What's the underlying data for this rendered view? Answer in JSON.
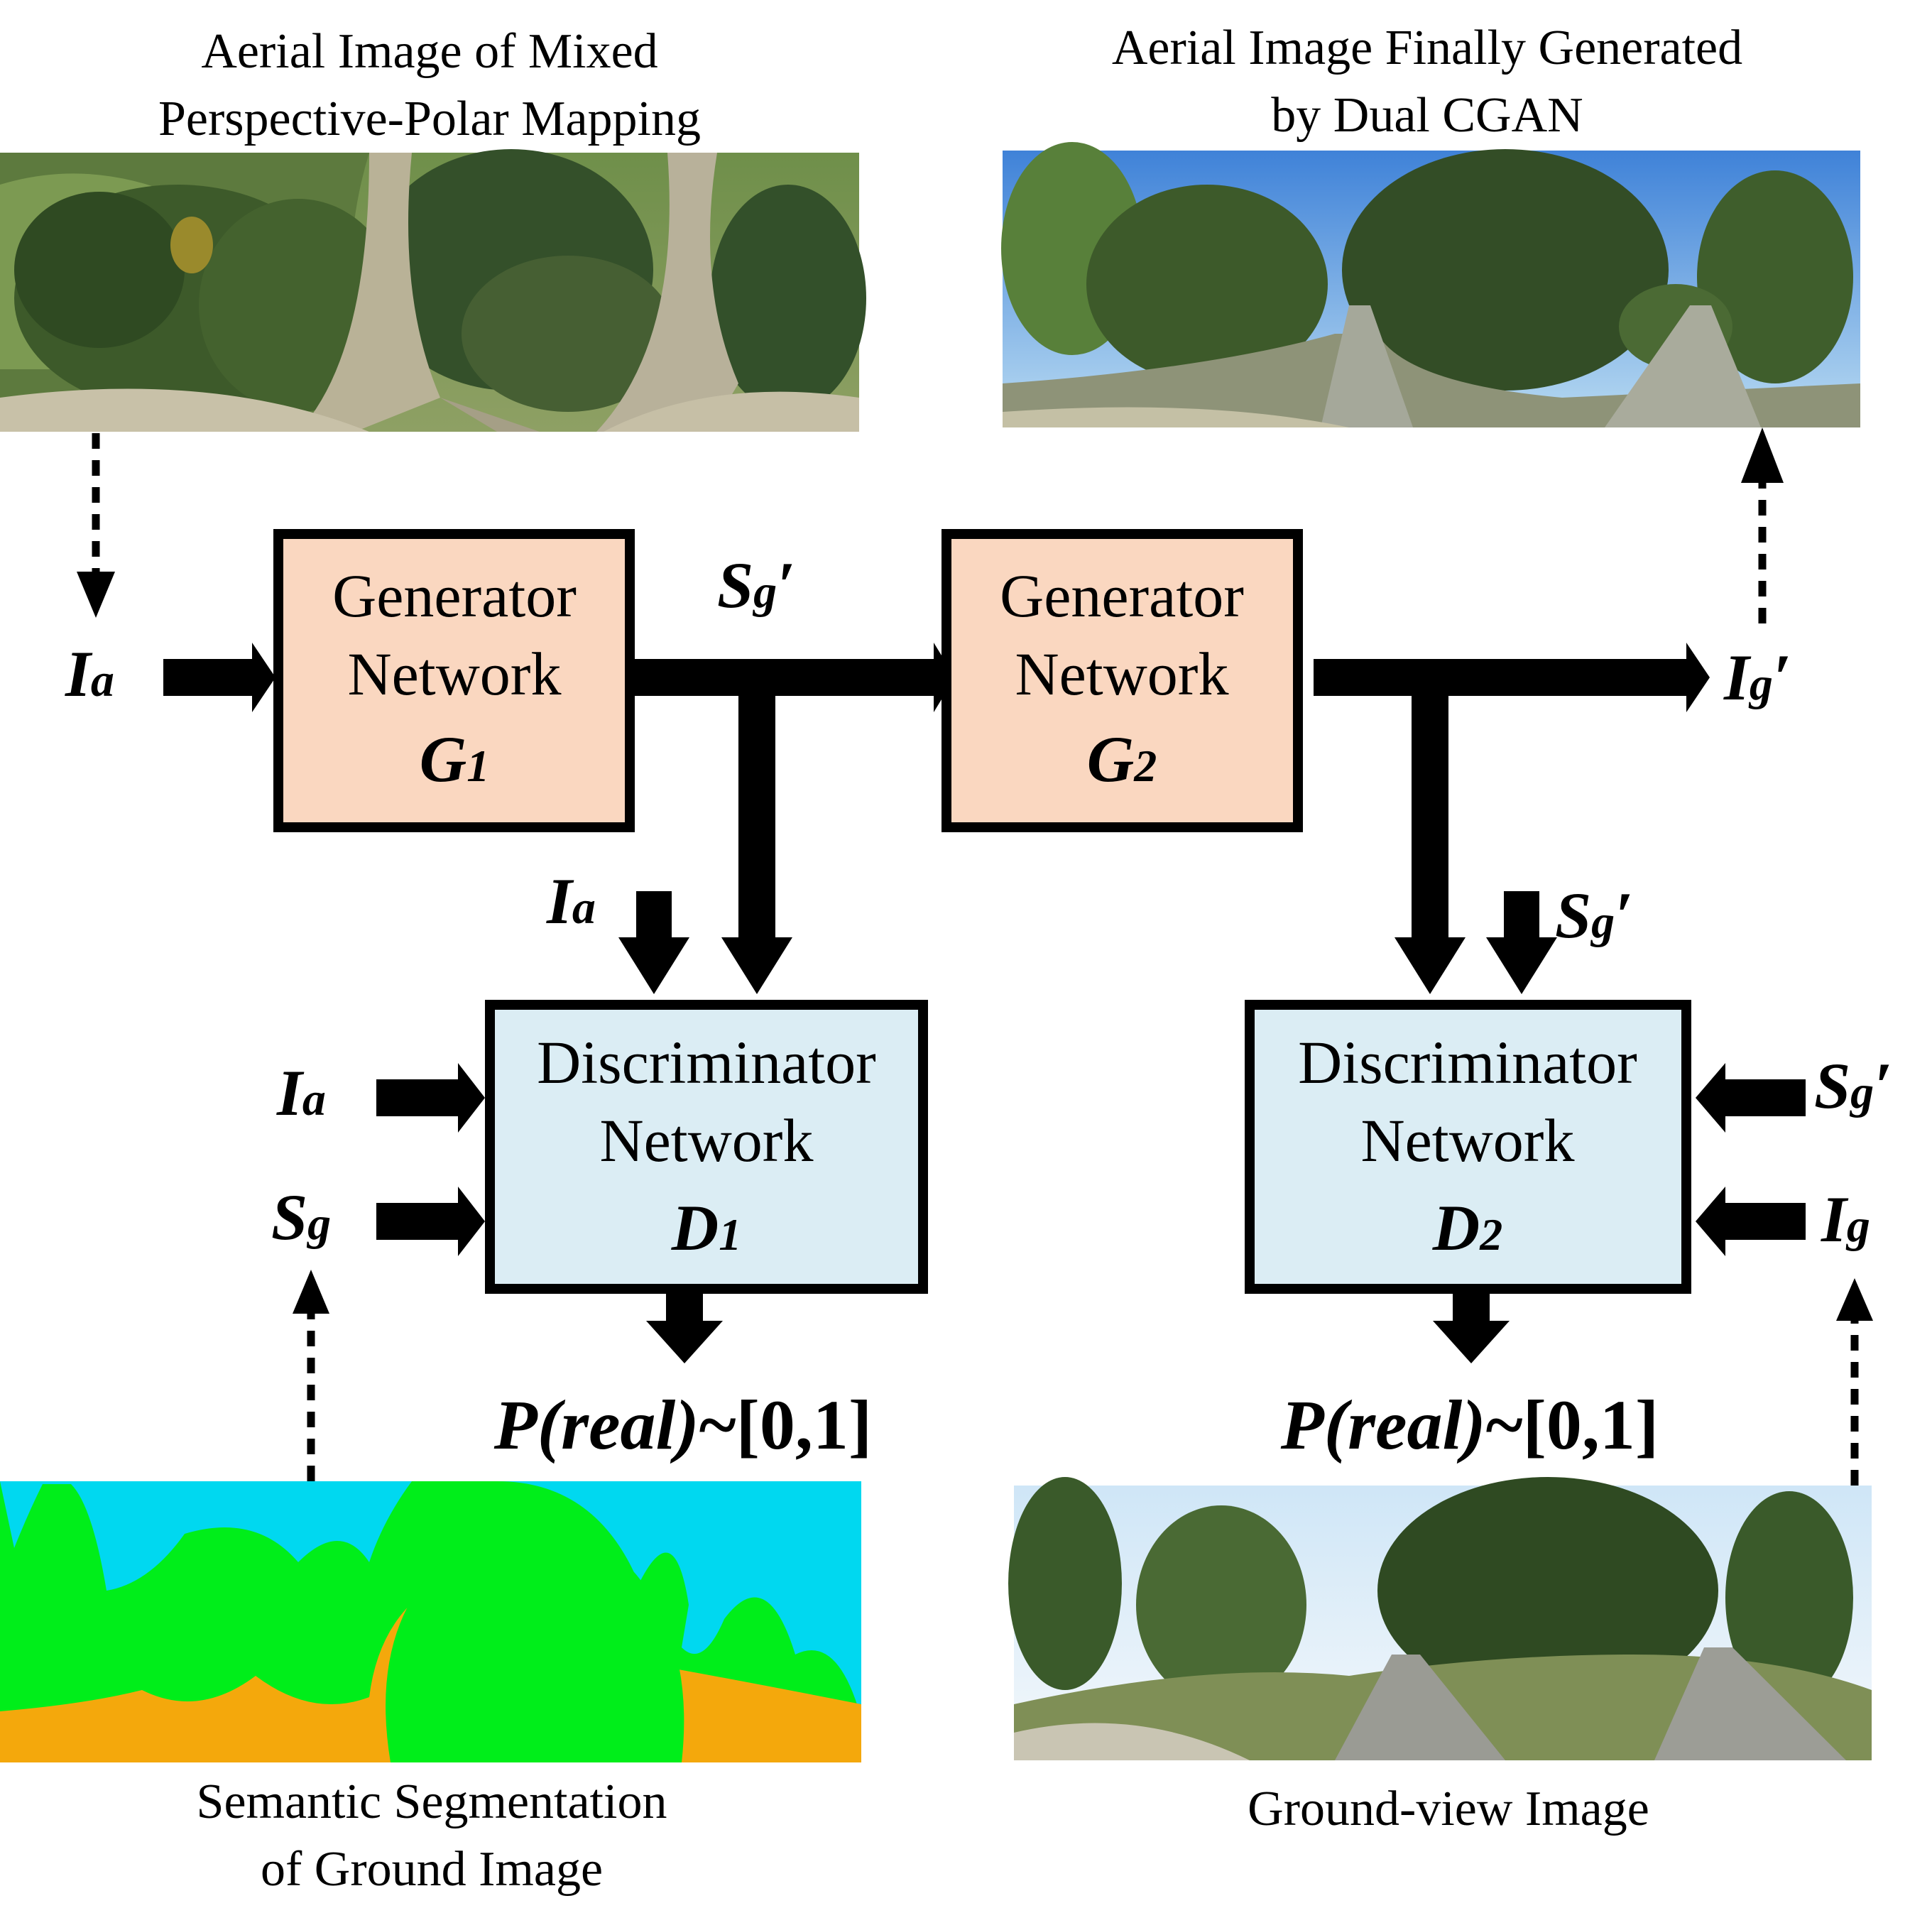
{
  "captions": {
    "top_left_line1": "Aerial Image of Mixed",
    "top_left_line2": "Perspective-Polar Mapping",
    "top_right_line1": "Aerial Image Finally Generated",
    "top_right_line2": "by Dual CGAN",
    "bottom_left_line1": "Semantic Segmentation",
    "bottom_left_line2": "of  Ground Image",
    "bottom_right": "Ground-view Image"
  },
  "boxes": {
    "g1": {
      "line1": "Generator",
      "line2": "Network",
      "id_main": "G",
      "id_sub": "1"
    },
    "g2": {
      "line1": "Generator",
      "line2": "Network",
      "id_main": "G",
      "id_sub": "2"
    },
    "d1": {
      "line1": "Discriminator",
      "line2": "Network",
      "id_main": "D",
      "id_sub": "1"
    },
    "d2": {
      "line1": "Discriminator",
      "line2": "Network",
      "id_main": "D",
      "id_sub": "2"
    }
  },
  "symbols": {
    "ia_main": "I",
    "ia_sub": "a",
    "sg_prime_main": "S",
    "sg_prime_sub": "g",
    "prime": "′",
    "ig_prime_main": "I",
    "ig_prime_sub": "g",
    "sg_main": "S",
    "sg_sub": "g",
    "ig_main": "I",
    "ig_sub": "g"
  },
  "outputs": {
    "p_real_italic": "P(real)",
    "p_real_range": "~[0,1]"
  },
  "colors": {
    "generator_fill": "#fad7c0",
    "discriminator_fill": "#dbedf4",
    "seg_sky": "#00d8f0",
    "seg_vegetation": "#00ee1a",
    "seg_road": "#f4a80c"
  }
}
